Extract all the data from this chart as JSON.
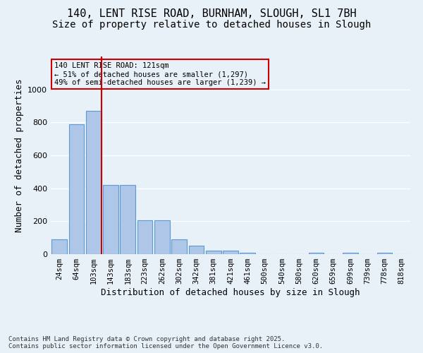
{
  "title_line1": "140, LENT RISE ROAD, BURNHAM, SLOUGH, SL1 7BH",
  "title_line2": "Size of property relative to detached houses in Slough",
  "xlabel": "Distribution of detached houses by size in Slough",
  "ylabel": "Number of detached properties",
  "categories": [
    "24sqm",
    "64sqm",
    "103sqm",
    "143sqm",
    "183sqm",
    "223sqm",
    "262sqm",
    "302sqm",
    "342sqm",
    "381sqm",
    "421sqm",
    "461sqm",
    "500sqm",
    "540sqm",
    "580sqm",
    "620sqm",
    "659sqm",
    "699sqm",
    "739sqm",
    "778sqm",
    "818sqm"
  ],
  "values": [
    90,
    790,
    868,
    420,
    420,
    205,
    205,
    90,
    50,
    20,
    20,
    10,
    0,
    0,
    0,
    10,
    0,
    10,
    0,
    10,
    0
  ],
  "bar_color": "#aec6e8",
  "bar_edge_color": "#5b9bd5",
  "vline_color": "#cc0000",
  "annotation_text": "140 LENT RISE ROAD: 121sqm\n← 51% of detached houses are smaller (1,297)\n49% of semi-detached houses are larger (1,239) →",
  "annotation_box_color": "#cc0000",
  "ylim": [
    0,
    1200
  ],
  "yticks": [
    0,
    200,
    400,
    600,
    800,
    1000
  ],
  "background_color": "#e8f0f8",
  "grid_color": "#ffffff",
  "footnote": "Contains HM Land Registry data © Crown copyright and database right 2025.\nContains public sector information licensed under the Open Government Licence v3.0.",
  "title_fontsize": 11,
  "subtitle_fontsize": 10,
  "xlabel_fontsize": 9,
  "ylabel_fontsize": 9,
  "tick_fontsize": 7.5,
  "footnote_fontsize": 6.5
}
